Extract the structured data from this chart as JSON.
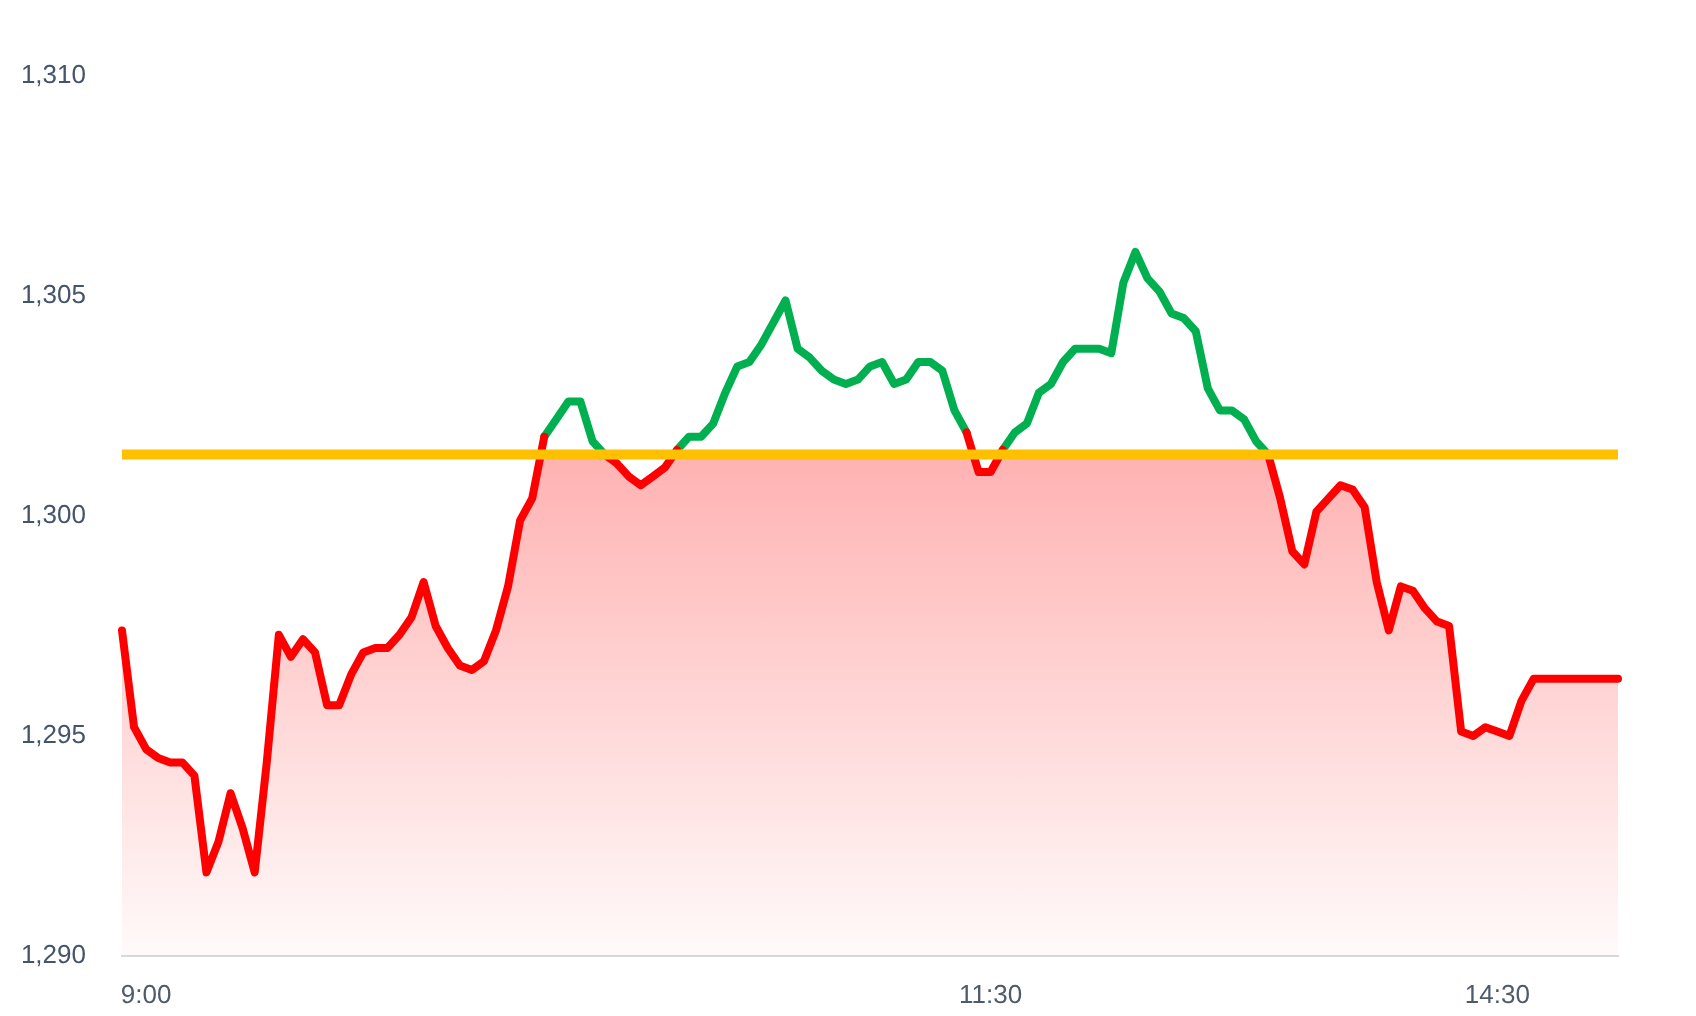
{
  "chart_data": {
    "type": "line",
    "categories": [
      null,
      null,
      "9:00",
      null,
      null,
      null,
      null,
      null,
      null,
      null,
      null,
      null,
      null,
      null,
      null,
      null,
      null,
      null,
      null,
      null,
      null,
      null,
      null,
      null,
      null,
      null,
      null,
      null,
      null,
      null,
      null,
      null,
      null,
      null,
      null,
      null,
      null,
      null,
      null,
      null,
      null,
      null,
      null,
      null,
      null,
      null,
      null,
      null,
      null,
      null,
      null,
      null,
      null,
      null,
      null,
      null,
      null,
      null,
      null,
      null,
      null,
      null,
      null,
      null,
      null,
      null,
      null,
      null,
      null,
      null,
      null,
      null,
      "11:30",
      null,
      null,
      null,
      null,
      null,
      null,
      null,
      null,
      null,
      null,
      null,
      null,
      null,
      null,
      null,
      null,
      null,
      null,
      null,
      null,
      null,
      null,
      null,
      null,
      null,
      null,
      null,
      null,
      null,
      null,
      null,
      null,
      null,
      null,
      null,
      null,
      null,
      null,
      null,
      null,
      null,
      "14:30",
      null,
      null,
      null,
      null,
      null,
      null,
      null,
      null,
      null,
      null
    ],
    "series": [
      {
        "type": "area",
        "color": "#ff0000",
        "values": [
          1297.4,
          1295.2,
          1294.7,
          1294.5,
          1294.4,
          1294.4,
          1294.1,
          1291.9,
          1292.6,
          1293.7,
          1292.9,
          1291.9,
          1294.4,
          1297.3,
          1296.8,
          1297.2,
          1296.9,
          1295.7,
          1295.7,
          1296.4,
          1296.9,
          1297.0,
          1297.0,
          1297.3,
          1297.7,
          1298.5,
          1297.5,
          1297.0,
          1296.6,
          1296.5,
          1296.7,
          1297.4,
          1298.4,
          1299.9,
          1300.4,
          1301.8,
          null,
          null,
          null,
          null,
          1301.4,
          1301.2,
          1300.9,
          1300.7,
          1300.9,
          1301.1,
          1301.5,
          null,
          null,
          null,
          null,
          null,
          null,
          null,
          null,
          null,
          null,
          null,
          null,
          null,
          null,
          null,
          null,
          null,
          null,
          null,
          null,
          null,
          null,
          null,
          1301.9,
          1301.0,
          1301.0,
          1301.5,
          null,
          null,
          null,
          null,
          null,
          null,
          null,
          null,
          null,
          null,
          null,
          null,
          null,
          null,
          null,
          null,
          null,
          null,
          null,
          null,
          null,
          1301.4,
          1300.4,
          1299.2,
          1298.9,
          1300.1,
          1300.4,
          1300.7,
          1300.6,
          1300.2,
          1298.5,
          1297.4,
          1298.4,
          1298.3,
          1297.9,
          1297.6,
          1297.5,
          1295.1,
          1295.0,
          1295.2,
          1295.1,
          1295.0,
          1295.8,
          1296.3,
          1296.3,
          1296.3,
          1296.3,
          1296.3,
          1296.3,
          1296.3,
          1296.3
        ]
      },
      {
        "type": "line",
        "color": "#00b050",
        "values": [
          null,
          null,
          null,
          null,
          null,
          null,
          null,
          null,
          null,
          null,
          null,
          null,
          null,
          null,
          null,
          null,
          null,
          null,
          null,
          null,
          null,
          null,
          null,
          null,
          null,
          null,
          null,
          null,
          null,
          null,
          null,
          null,
          null,
          null,
          null,
          1301.8,
          1302.2,
          1302.6,
          1302.6,
          1301.7,
          1301.4,
          null,
          null,
          null,
          null,
          null,
          1301.5,
          1301.8,
          1301.8,
          1302.1,
          1302.8,
          1303.4,
          1303.5,
          1303.9,
          1304.4,
          1304.9,
          1303.8,
          1303.6,
          1303.3,
          1303.1,
          1303.0,
          1303.1,
          1303.4,
          1303.5,
          1303.0,
          1303.1,
          1303.5,
          1303.5,
          1303.3,
          1302.4,
          1301.9,
          null,
          null,
          1301.5,
          1301.9,
          1302.1,
          1302.8,
          1303.0,
          1303.5,
          1303.8,
          1303.8,
          1303.8,
          1303.7,
          1305.3,
          1306.0,
          1305.4,
          1305.1,
          1304.6,
          1304.5,
          1304.2,
          1302.9,
          1302.4,
          1302.4,
          1302.2,
          1301.7,
          1301.4,
          null,
          null,
          null,
          null,
          null,
          null,
          null,
          null,
          null,
          null,
          null,
          null,
          null,
          null,
          null,
          null,
          null,
          null,
          null,
          null,
          null,
          null,
          null,
          null,
          null,
          null,
          null,
          null,
          null
        ]
      }
    ],
    "ylim": [
      1290,
      1310
    ],
    "yticks": [
      {
        "value": 1290,
        "label": "1,290"
      },
      {
        "value": 1295,
        "label": "1,295"
      },
      {
        "value": 1300,
        "label": "1,300"
      },
      {
        "value": 1305,
        "label": "1,305"
      },
      {
        "value": 1310,
        "label": "1,310"
      }
    ],
    "ref_lines": [
      {
        "axis": "y",
        "value": 1301.4,
        "color": "#ffc000"
      }
    ],
    "marker": "none"
  }
}
